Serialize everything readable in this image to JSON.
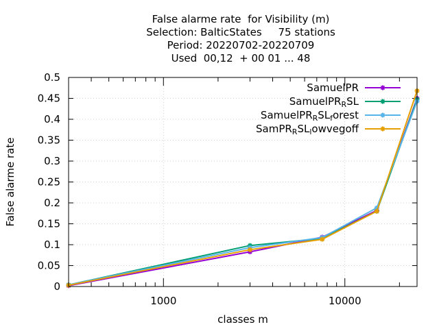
{
  "chart_data": {
    "type": "line",
    "title_lines": [
      "False alarme rate  for Visibility (m)",
      "Selection: BalticStates     75 stations",
      "Period: 20220702-20220709",
      "Used  00,12  + 00 01 ... 48"
    ],
    "xlabel": "classes m",
    "ylabel": "False alarme rate",
    "x_scale": "log",
    "xlim": [
      300,
      25000
    ],
    "ylim": [
      0,
      0.5
    ],
    "x_ticks": [
      1000,
      10000
    ],
    "x_tick_labels": [
      "1000",
      "10000"
    ],
    "y_ticks": [
      0,
      0.05,
      0.1,
      0.15,
      0.2,
      0.25,
      0.3,
      0.35,
      0.4,
      0.45,
      0.5
    ],
    "y_tick_labels": [
      "0",
      "0.05",
      "0.1",
      "0.15",
      "0.2",
      "0.25",
      "0.3",
      "0.35",
      "0.4",
      "0.45",
      "0.5"
    ],
    "grid": true,
    "legend_position": "top-right",
    "x": [
      300,
      3000,
      7500,
      15000,
      25000
    ],
    "series": [
      {
        "name": "SamuelPR",
        "name_parts": [
          [
            "SamuelPR",
            false
          ]
        ],
        "color": "#9400d3",
        "values": [
          0.002,
          0.083,
          0.118,
          0.182,
          0.45
        ]
      },
      {
        "name": "SamuelPR_RSL",
        "name_parts": [
          [
            "SamuelPR",
            false
          ],
          [
            "R",
            true
          ],
          [
            "SL",
            false
          ]
        ],
        "color": "#009e73",
        "values": [
          0.004,
          0.098,
          0.115,
          0.18,
          0.448
        ]
      },
      {
        "name": "SamuelPR_RSL_forest",
        "name_parts": [
          [
            "SamuelPR",
            false
          ],
          [
            "R",
            true
          ],
          [
            "SL",
            false
          ],
          [
            "f",
            true
          ],
          [
            "orest",
            false
          ]
        ],
        "color": "#56b4e9",
        "values": [
          0.004,
          0.093,
          0.117,
          0.188,
          0.443
        ]
      },
      {
        "name": "SamPR_RSL_lowvegoff",
        "name_parts": [
          [
            "SamPR",
            false
          ],
          [
            "R",
            true
          ],
          [
            "SL",
            false
          ],
          [
            "l",
            true
          ],
          [
            "owvegoff",
            false
          ]
        ],
        "color": "#e69f00",
        "values": [
          0.003,
          0.088,
          0.113,
          0.18,
          0.468
        ]
      }
    ]
  }
}
